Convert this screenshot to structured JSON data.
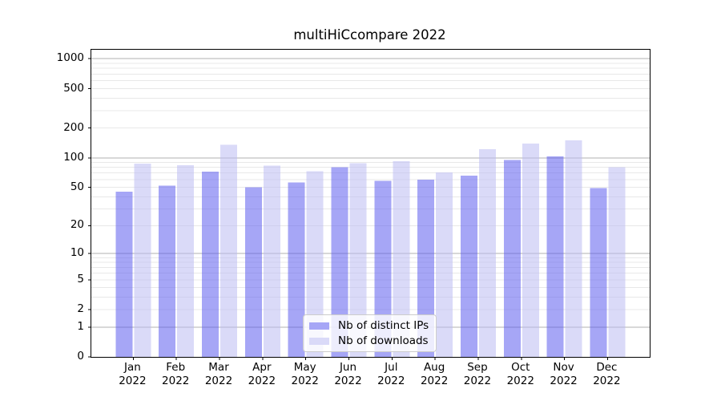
{
  "chart_data": {
    "type": "bar",
    "title": "multiHiCcompare 2022",
    "categories": [
      "Jan",
      "Feb",
      "Mar",
      "Apr",
      "May",
      "Jun",
      "Jul",
      "Aug",
      "Sep",
      "Oct",
      "Nov",
      "Dec"
    ],
    "year_label": "2022",
    "series": [
      {
        "name": "Nb of distinct IPs",
        "color": "#a6a6f6",
        "values": [
          45,
          52,
          72,
          50,
          56,
          80,
          58,
          60,
          66,
          95,
          103,
          49
        ]
      },
      {
        "name": "Nb of downloads",
        "color": "#dadaf8",
        "values": [
          87,
          84,
          136,
          83,
          73,
          88,
          92,
          71,
          122,
          140,
          150,
          80
        ]
      }
    ],
    "yscale": "log1p",
    "ylim": [
      0,
      1232
    ],
    "yticks": [
      1000,
      500,
      200,
      100,
      50,
      20,
      10,
      5,
      2,
      1,
      0
    ],
    "major_gridlines": [
      1,
      10,
      100,
      1000
    ],
    "minor_gridlines": [
      2,
      3,
      4,
      5,
      6,
      7,
      8,
      9,
      20,
      30,
      40,
      50,
      60,
      70,
      80,
      90,
      200,
      300,
      400,
      500,
      600,
      700,
      800,
      900
    ],
    "grid": true,
    "legend_position": "bottom-center",
    "colors": {
      "grid_major": "#b0b0b0",
      "grid_minor": "#e8e8e8",
      "axis": "#000000",
      "bar_alpha": 0.55
    }
  }
}
